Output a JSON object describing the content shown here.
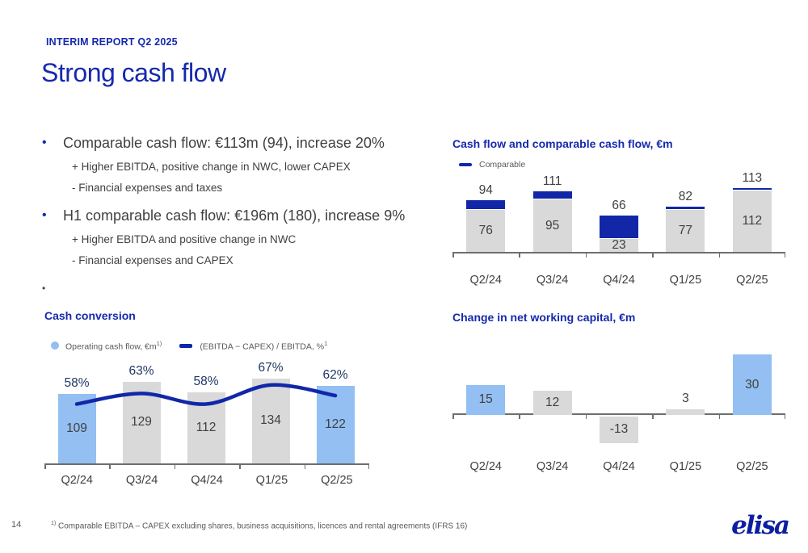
{
  "meta": {
    "report_label": "INTERIM REPORT Q2 2025",
    "title": "Strong cash flow",
    "page_number": "14"
  },
  "bullets": [
    {
      "text": "Comparable cash flow: €113m (94), increase 20%",
      "subs": [
        "+ Higher EBITDA, positive change in NWC, lower CAPEX",
        "-  Financial expenses and taxes"
      ]
    },
    {
      "text": "H1 comparable cash flow: €196m (180), increase 9%",
      "subs": [
        "+ Higher EBITDA and positive change in NWC",
        "-  Financial expenses and CAPEX"
      ]
    },
    {
      "text": ""
    }
  ],
  "footnote": {
    "sup": "1)",
    "text": "Comparable EBITDA – CAPEX excluding shares, business acquisitions, licences and rental agreements (IFRS 16)"
  },
  "logo": {
    "text": "elisa"
  },
  "colors": {
    "brand_blue": "#1629AE",
    "bar_blue": "#1127A8",
    "light_blue": "#93BFF2",
    "bar_gray": "#D9D9D9",
    "navy_label": "#1F3864"
  },
  "chart_data": [
    {
      "id": "cash-flow",
      "type": "bar",
      "subtype": "stacked-overlay",
      "title": "Cash flow and comparable cash flow, €m",
      "categories": [
        "Q2/24",
        "Q3/24",
        "Q4/24",
        "Q1/25",
        "Q2/25"
      ],
      "series": [
        {
          "name": "Cash flow",
          "values": [
            76,
            95,
            23,
            77,
            112
          ],
          "color": "#D9D9D9"
        },
        {
          "name": "Comparable cash flow",
          "values": [
            94,
            111,
            66,
            82,
            113
          ],
          "color": "#1127A8"
        }
      ],
      "legend": [
        {
          "label": "Comparable",
          "marker": "dash",
          "color": "#1127A8"
        }
      ],
      "grid": false,
      "legend_position": "top-left"
    },
    {
      "id": "cash-conversion",
      "type": "bar",
      "subtype": "bar-plus-line",
      "title": "Cash conversion",
      "categories": [
        "Q2/24",
        "Q3/24",
        "Q4/24",
        "Q1/25",
        "Q2/25"
      ],
      "series": [
        {
          "name": "Operating cash flow, €m",
          "type": "bar",
          "values": [
            109,
            129,
            112,
            134,
            122
          ],
          "colors": [
            "#93BFF2",
            "#D9D9D9",
            "#D9D9D9",
            "#D9D9D9",
            "#93BFF2"
          ]
        },
        {
          "name": "(EBITDA − CAPEX) / EBITDA, %",
          "type": "line",
          "values": [
            58,
            63,
            58,
            67,
            62
          ],
          "unit": "%",
          "color": "#1127A8"
        }
      ],
      "legend": [
        {
          "label": "Operating cash flow, €m",
          "sup": "1)",
          "marker": "circle",
          "color": "#93BFF2"
        },
        {
          "label": "(EBITDA − CAPEX) / EBITDA, %",
          "sup": "1",
          "marker": "dash",
          "color": "#1127A8"
        }
      ],
      "grid": false,
      "legend_position": "top-left"
    },
    {
      "id": "net-working-capital",
      "type": "bar",
      "subtype": "positive-negative",
      "title": "Change in net working capital, €m",
      "categories": [
        "Q2/24",
        "Q3/24",
        "Q4/24",
        "Q1/25",
        "Q2/25"
      ],
      "values": [
        15,
        12,
        -13,
        3,
        30
      ],
      "bar_colors": [
        "#93BFF2",
        "#D9D9D9",
        "#D9D9D9",
        "#D9D9D9",
        "#93BFF2"
      ],
      "grid": false
    }
  ]
}
